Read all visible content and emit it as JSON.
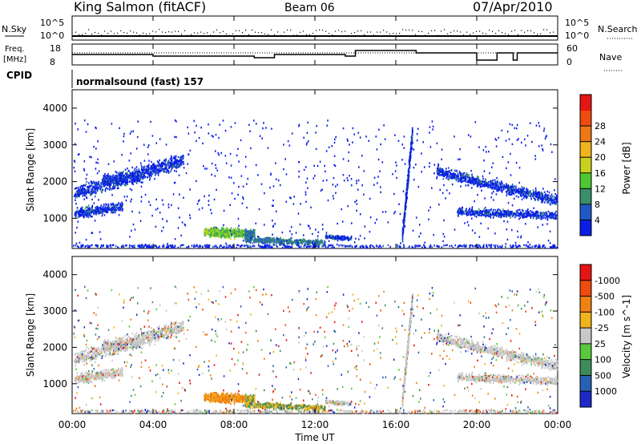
{
  "header": {
    "station": "King Salmon (fitACF)",
    "beam": "Beam 06",
    "date": "07/Apr/2010"
  },
  "aux": {
    "nsky_label": "N.Sky",
    "nsearch_label": "N.Search",
    "freq_label_1": "Freq.",
    "freq_label_2": "[MHz]",
    "nave_label": "Nave",
    "cpid_label": "CPID",
    "cpid_value": "normalsound (fast) 157",
    "nsky_ticks": [
      "10^5",
      "10^0"
    ],
    "nsearch_ticks": [
      "10^5",
      "10^0"
    ],
    "freq_ticks": [
      "18",
      "8"
    ],
    "nave_ticks": [
      "60",
      "0"
    ]
  },
  "chart_data": [
    {
      "type": "heatmap",
      "name": "power",
      "xlabel": "Time UT",
      "ylabel": "Slant Range [km]",
      "xticks": [
        "00:00",
        "04:00",
        "08:00",
        "12:00",
        "16:00",
        "20:00",
        "00:00"
      ],
      "yticks": [
        1000,
        2000,
        3000,
        4000
      ],
      "xlim_hours": [
        0,
        24
      ],
      "ylim_km": [
        180,
        4500
      ],
      "colorbar": {
        "label": "Power [dB]",
        "ticks": [
          "4",
          "8",
          "12",
          "16",
          "20",
          "24",
          "28"
        ],
        "colors": [
          "#0a1ee6",
          "#2058c8",
          "#3a8e6a",
          "#4ec832",
          "#c8d21e",
          "#f0b41e",
          "#f07814",
          "#f04b0f",
          "#e61414"
        ]
      }
    },
    {
      "type": "heatmap",
      "name": "velocity",
      "xlabel": "Time UT",
      "ylabel": "Slant Range [km]",
      "xticks": [
        "00:00",
        "04:00",
        "08:00",
        "12:00",
        "16:00",
        "20:00",
        "00:00"
      ],
      "yticks": [
        1000,
        2000,
        3000,
        4000
      ],
      "xlim_hours": [
        0,
        24
      ],
      "ylim_km": [
        180,
        4500
      ],
      "colorbar": {
        "label": "Velocity [m s^-1]",
        "ticks": [
          "1000",
          "500",
          "100",
          "25",
          "-25",
          "-100",
          "-500",
          "-1000"
        ],
        "colors": [
          "#1e28c8",
          "#2860b4",
          "#3c8c5a",
          "#5ac83c",
          "#c8c8c8",
          "#f0b41e",
          "#f08214",
          "#f04b0f",
          "#e61414"
        ]
      }
    }
  ]
}
